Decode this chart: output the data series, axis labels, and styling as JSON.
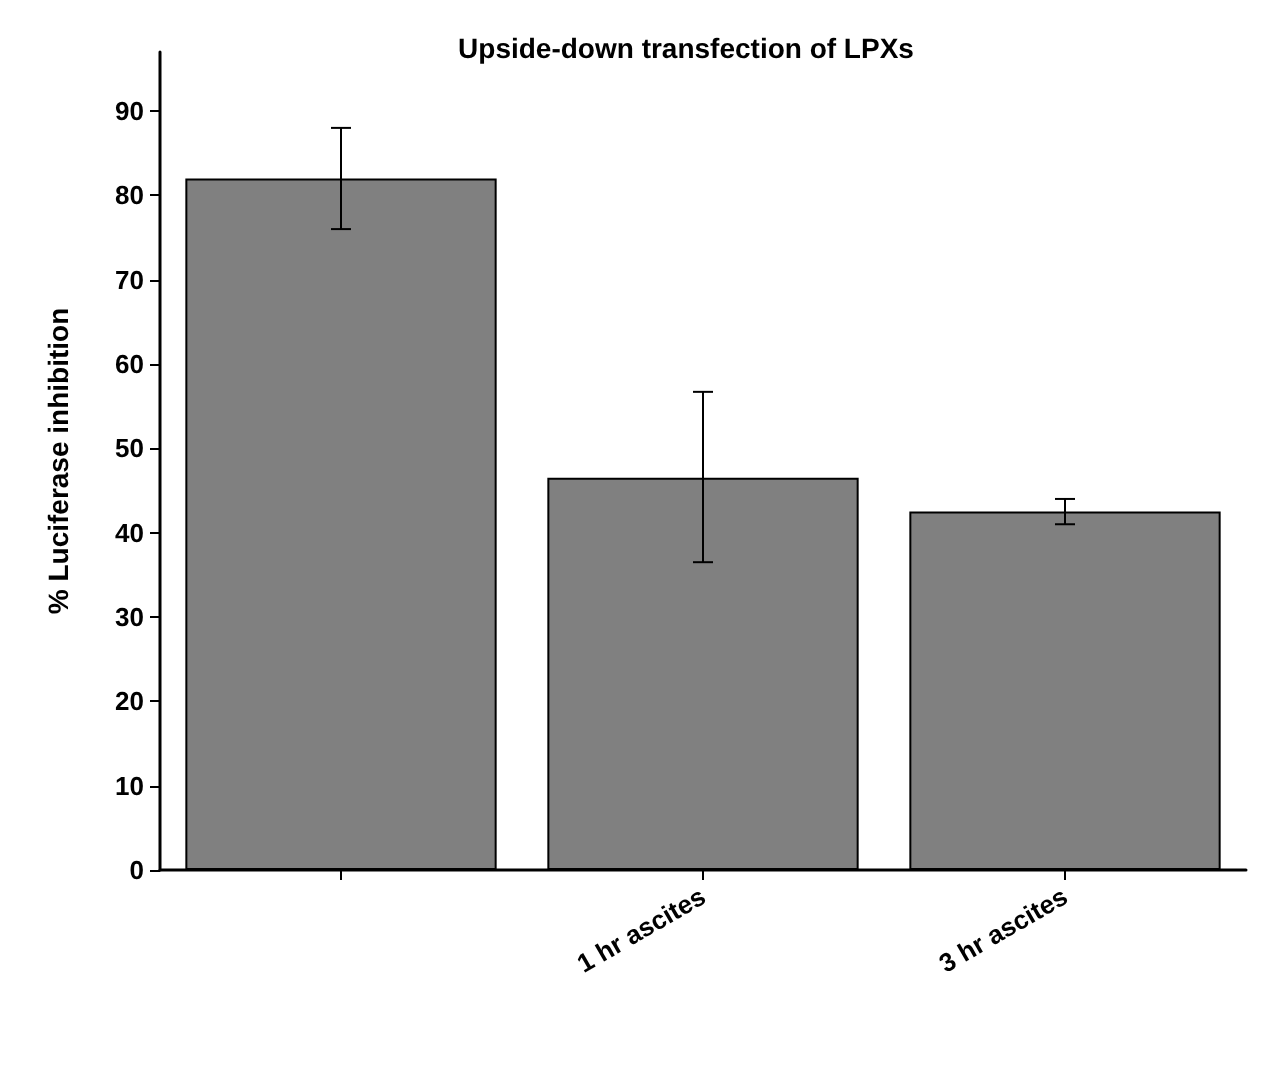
{
  "chart_data": {
    "type": "bar",
    "title": "Upside-down transfection of LPXs",
    "ylabel": "% Luciferase inhibition",
    "categories": [
      null,
      "1 hr ascites",
      "3 hr ascites"
    ],
    "values": [
      82,
      46.5,
      42.5
    ],
    "errors": [
      [
        76,
        88
      ],
      [
        36.5,
        56.7
      ],
      [
        41,
        44
      ]
    ],
    "color": "#808080",
    "ylim": [
      0,
      97
    ],
    "yticks": [
      0,
      10,
      20,
      30,
      40,
      50,
      60,
      70,
      80,
      90
    ],
    "grid": false
  }
}
